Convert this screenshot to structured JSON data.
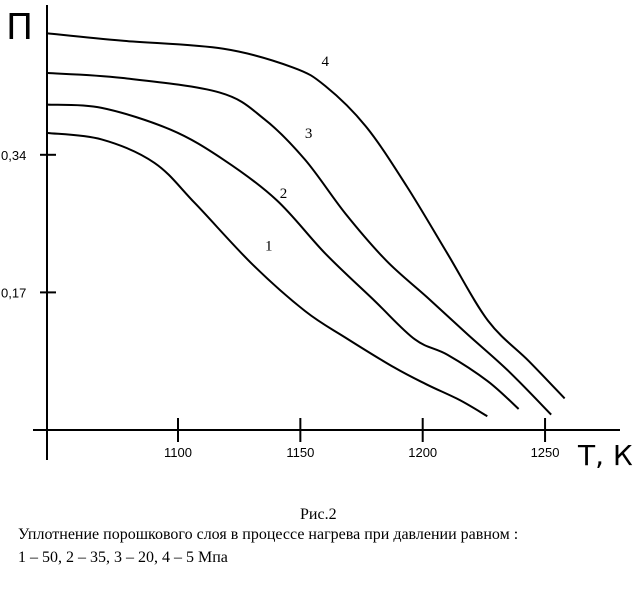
{
  "chart_data": {
    "type": "line",
    "title": "",
    "xlabel": "Т, К",
    "ylabel": "П",
    "xlim": [
      1046.5,
      1280
    ],
    "ylim": [
      0,
      0.52
    ],
    "x_ticks": [
      1100,
      1150,
      1200,
      1250
    ],
    "x_tick_labels": [
      "1100",
      "1150",
      "1200",
      "1250"
    ],
    "y_ticks": [
      0.17,
      0.34
    ],
    "y_tick_labels": [
      "0,17",
      "0,34"
    ],
    "grid": false,
    "series": [
      {
        "name": "1",
        "label_at": [
          1137.6,
          0.228
        ],
        "x": [
          1046.8,
          1068.8,
          1090.4,
          1107,
          1130.3,
          1151.9,
          1168.5,
          1188.5,
          1201.8,
          1215.1,
          1226.4
        ],
        "y": [
          0.367,
          0.359,
          0.33,
          0.28,
          0.205,
          0.147,
          0.114,
          0.077,
          0.056,
          0.037,
          0.017
        ]
      },
      {
        "name": "2",
        "label_at": [
          1143.6,
          0.293
        ],
        "x": [
          1046.8,
          1068.8,
          1097,
          1118.6,
          1140.3,
          1160.2,
          1180.2,
          1196.8,
          1210.1,
          1226.7,
          1239.2
        ],
        "y": [
          0.402,
          0.398,
          0.371,
          0.334,
          0.284,
          0.218,
          0.16,
          0.112,
          0.093,
          0.06,
          0.026
        ]
      },
      {
        "name": "3",
        "label_at": [
          1153.9,
          0.367
        ],
        "x": [
          1046.8,
          1077,
          1116.9,
          1135.3,
          1151.9,
          1168.5,
          1185.2,
          1201.8,
          1218.4,
          1235,
          1252.5
        ],
        "y": [
          0.441,
          0.435,
          0.417,
          0.384,
          0.334,
          0.267,
          0.209,
          0.164,
          0.118,
          0.073,
          0.019
        ]
      },
      {
        "name": "4",
        "label_at": [
          1160.7,
          0.456
        ],
        "x": [
          1046.8,
          1077,
          1118.6,
          1146.9,
          1160.2,
          1176.8,
          1193.5,
          1210.1,
          1226.7,
          1243.4,
          1258
        ],
        "y": [
          0.49,
          0.481,
          0.471,
          0.448,
          0.425,
          0.375,
          0.301,
          0.218,
          0.135,
          0.085,
          0.039
        ]
      }
    ]
  },
  "caption": {
    "figure": "Рис.2",
    "line1": "Уплотнение порошкового слоя в процессе нагрева при давлении равном :",
    "line2": "1 – 50, 2 – 35, 3 – 20, 4 – 5 Мпа"
  }
}
